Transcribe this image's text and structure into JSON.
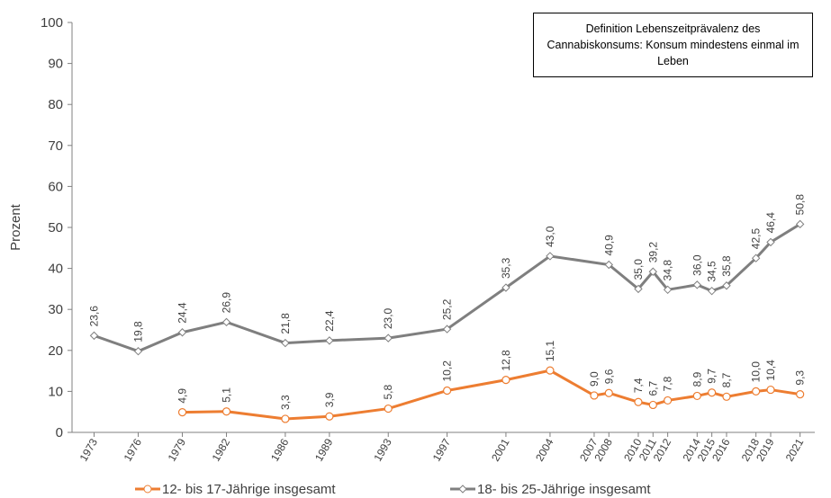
{
  "chart_data": {
    "type": "line",
    "y_label": "Prozent",
    "annotation": "Definition Lebenszeitprävalenz des Cannabiskonsums: Konsum mindestens einmal im Leben",
    "xlim": [
      1971.5,
      2022
    ],
    "xticks": [
      1973,
      1976,
      1979,
      1982,
      1986,
      1989,
      1993,
      1997,
      2001,
      2004,
      2007,
      2008,
      2010,
      2011,
      2012,
      2014,
      2015,
      2016,
      2018,
      2019,
      2021
    ],
    "ylim": [
      0,
      100
    ],
    "yticks": [
      0,
      10,
      20,
      30,
      40,
      50,
      60,
      70,
      80,
      90,
      100
    ],
    "legend": "bottom",
    "series": [
      {
        "name": "12- bis 17-Jährige insgesamt",
        "color": "#ed7d31",
        "marker": "circle",
        "x": [
          1979,
          1982,
          1986,
          1989,
          1993,
          1997,
          2001,
          2004,
          2007,
          2008,
          2010,
          2011,
          2012,
          2014,
          2015,
          2016,
          2018,
          2019,
          2021
        ],
        "values": [
          4.9,
          5.1,
          3.3,
          3.9,
          5.8,
          10.2,
          12.8,
          15.1,
          9.0,
          9.6,
          7.4,
          6.7,
          7.8,
          8.9,
          9.7,
          8.7,
          10.0,
          10.4,
          9.3
        ],
        "value_labels": [
          "4,9",
          "5,1",
          "3,3",
          "3,9",
          "5,8",
          "10,2",
          "12,8",
          "15,1",
          "9,0",
          "9,6",
          "7,4",
          "6,7",
          "7,8",
          "8,9",
          "9,7",
          "8,7",
          "10,0",
          "10,4",
          "9,3"
        ]
      },
      {
        "name": "18- bis 25-Jährige insgesamt",
        "color": "#7f7f7f",
        "marker": "diamond",
        "x": [
          1973,
          1976,
          1979,
          1982,
          1986,
          1989,
          1993,
          1997,
          2001,
          2004,
          2008,
          2010,
          2011,
          2012,
          2014,
          2015,
          2016,
          2018,
          2019,
          2021
        ],
        "values": [
          23.6,
          19.8,
          24.4,
          26.9,
          21.8,
          22.4,
          23.0,
          25.2,
          35.3,
          43.0,
          40.9,
          35.0,
          39.2,
          34.8,
          36.0,
          34.5,
          35.8,
          42.5,
          46.4,
          50.8
        ],
        "value_labels": [
          "23,6",
          "19,8",
          "24,4",
          "26,9",
          "21,8",
          "22,4",
          "23,0",
          "25,2",
          "35,3",
          "43,0",
          "40,9",
          "35,0",
          "39,2",
          "34,8",
          "36,0",
          "34,5",
          "35,8",
          "42,5",
          "46,4",
          "50,8"
        ]
      }
    ]
  }
}
